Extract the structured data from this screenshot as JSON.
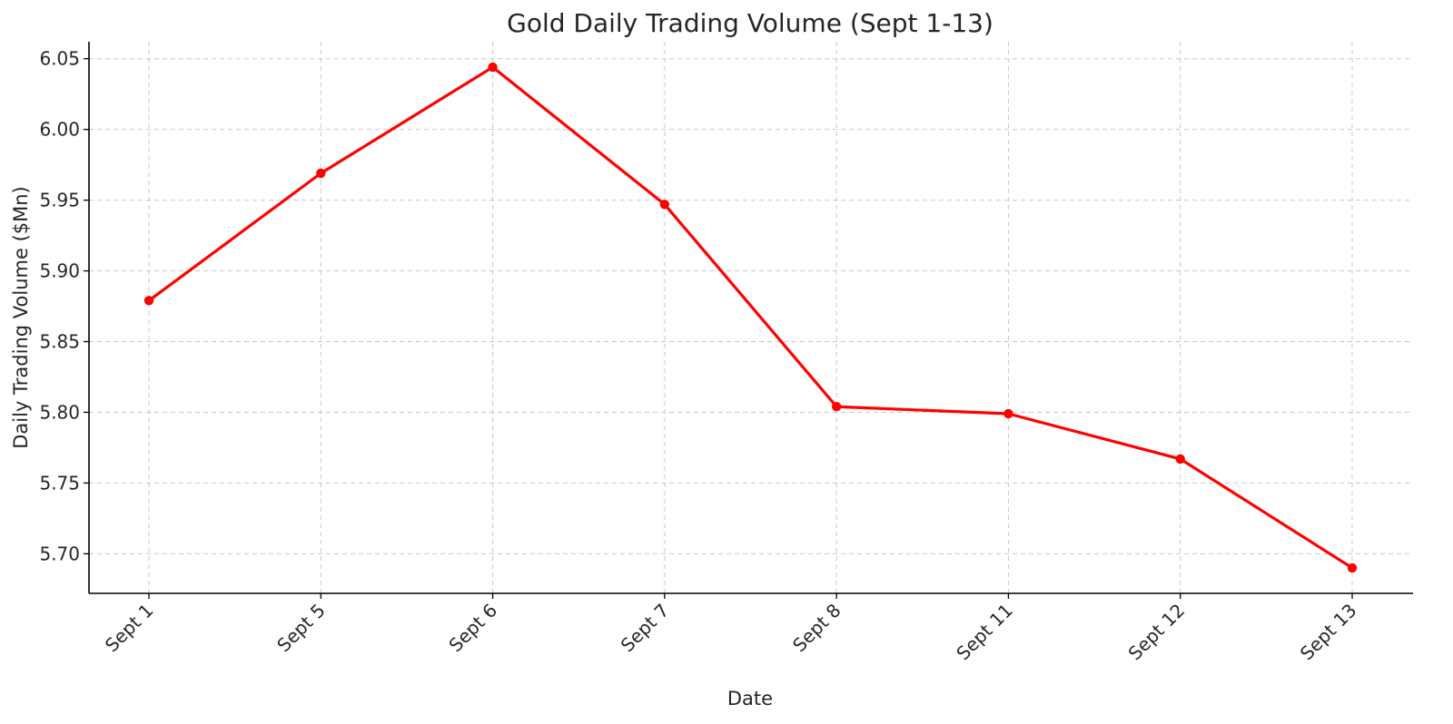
{
  "chart_data": {
    "type": "line",
    "title": "Gold Daily Trading Volume (Sept 1-13)",
    "xlabel": "Date",
    "ylabel": "Daily Trading Volume ($Mn)",
    "categories": [
      "Sept 1",
      "Sept 5",
      "Sept 6",
      "Sept 7",
      "Sept 8",
      "Sept 11",
      "Sept 12",
      "Sept 13"
    ],
    "series": [
      {
        "values": [
          5.879,
          5.969,
          6.044,
          5.947,
          5.804,
          5.799,
          5.767,
          5.69
        ],
        "color": "#ff0000"
      }
    ],
    "ylim": [
      5.672,
      6.062
    ],
    "yticks": [
      5.7,
      5.75,
      5.8,
      5.85,
      5.9,
      5.95,
      6.0,
      6.05
    ],
    "ytick_labels": [
      "5.70",
      "5.75",
      "5.80",
      "5.85",
      "5.90",
      "5.95",
      "6.00",
      "6.05"
    ],
    "grid": true,
    "legend": "none",
    "marker": "circle",
    "xtick_rotation": "45 degrees"
  }
}
